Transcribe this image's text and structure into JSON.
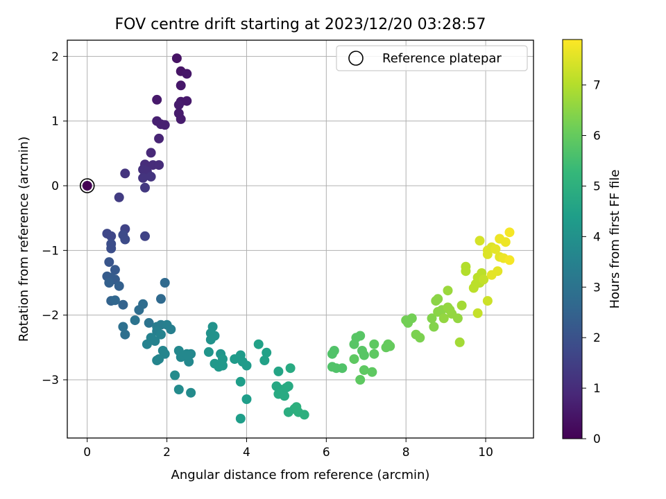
{
  "chart_data": {
    "type": "scatter",
    "title": "FOV centre drift starting at 2023/12/20 03:28:57",
    "xlabel": "Angular distance from reference (arcmin)",
    "ylabel": "Rotation from reference (arcmin)",
    "xlim": [
      -0.5,
      11.2
    ],
    "ylim": [
      -3.9,
      2.25
    ],
    "xticks": [
      0,
      2,
      4,
      6,
      8,
      10
    ],
    "yticks": [
      -3,
      -2,
      -1,
      0,
      1,
      2
    ],
    "xtick_labels": [
      "0",
      "2",
      "4",
      "6",
      "8",
      "10"
    ],
    "ytick_labels": [
      "−3",
      "−2",
      "−1",
      "0",
      "1",
      "2"
    ],
    "grid": true,
    "legend": {
      "position": "top-right",
      "entries": [
        "Reference platepar"
      ]
    },
    "reference_point": {
      "x": 0,
      "y": 0
    },
    "colorbar": {
      "label": "Hours from first FF file",
      "range": [
        0,
        7.9
      ],
      "ticks": [
        0,
        1,
        2,
        3,
        4,
        5,
        6,
        7
      ],
      "tick_labels": [
        "0",
        "1",
        "2",
        "3",
        "4",
        "5",
        "6",
        "7"
      ],
      "colormap": "viridis",
      "colors": [
        "#440154",
        "#482878",
        "#3e4989",
        "#31688e",
        "#26828e",
        "#1f9e89",
        "#35b779",
        "#6ece58",
        "#b5de2b",
        "#fde725"
      ]
    },
    "series": [
      {
        "points": [
          [
            0.0,
            0.0,
            0.0
          ],
          [
            2.25,
            1.97,
            0.4
          ],
          [
            2.35,
            1.77,
            0.45
          ],
          [
            2.5,
            1.73,
            0.5
          ],
          [
            2.35,
            1.55,
            0.5
          ],
          [
            1.75,
            1.33,
            0.55
          ],
          [
            2.35,
            1.3,
            0.55
          ],
          [
            2.5,
            1.31,
            0.55
          ],
          [
            2.3,
            1.25,
            0.6
          ],
          [
            2.3,
            1.12,
            0.6
          ],
          [
            2.35,
            1.03,
            0.6
          ],
          [
            1.75,
            1.0,
            0.7
          ],
          [
            1.85,
            0.95,
            0.7
          ],
          [
            1.95,
            0.94,
            0.7
          ],
          [
            1.8,
            0.73,
            0.8
          ],
          [
            1.6,
            0.51,
            0.9
          ],
          [
            1.45,
            0.33,
            1.0
          ],
          [
            1.65,
            0.32,
            1.0
          ],
          [
            1.8,
            0.32,
            1.0
          ],
          [
            1.4,
            0.25,
            1.1
          ],
          [
            1.5,
            0.22,
            1.1
          ],
          [
            0.95,
            0.19,
            1.2
          ],
          [
            1.4,
            0.12,
            1.2
          ],
          [
            1.6,
            0.14,
            1.2
          ],
          [
            1.45,
            -0.03,
            1.3
          ],
          [
            0.8,
            -0.18,
            1.4
          ],
          [
            0.95,
            -0.67,
            1.6
          ],
          [
            1.45,
            -0.78,
            1.6
          ],
          [
            0.5,
            -0.74,
            1.7
          ],
          [
            0.6,
            -0.78,
            1.7
          ],
          [
            0.9,
            -0.76,
            1.8
          ],
          [
            0.95,
            -0.83,
            1.8
          ],
          [
            0.6,
            -0.9,
            1.9
          ],
          [
            0.6,
            -0.97,
            1.9
          ],
          [
            0.55,
            -1.18,
            2.1
          ],
          [
            0.7,
            -1.3,
            2.2
          ],
          [
            0.5,
            -1.4,
            2.3
          ],
          [
            0.6,
            -1.42,
            2.3
          ],
          [
            0.7,
            -1.45,
            2.3
          ],
          [
            0.55,
            -1.5,
            2.4
          ],
          [
            0.8,
            -1.55,
            2.4
          ],
          [
            0.9,
            -1.84,
            2.5
          ],
          [
            0.6,
            -1.78,
            2.5
          ],
          [
            0.7,
            -1.77,
            2.6
          ],
          [
            1.95,
            -1.5,
            2.7
          ],
          [
            1.85,
            -1.75,
            2.7
          ],
          [
            1.4,
            -1.83,
            2.8
          ],
          [
            1.3,
            -1.92,
            2.8
          ],
          [
            0.9,
            -2.18,
            2.9
          ],
          [
            0.95,
            -2.3,
            2.9
          ],
          [
            1.55,
            -2.12,
            3.0
          ],
          [
            1.2,
            -2.08,
            3.0
          ],
          [
            1.75,
            -2.18,
            3.3
          ],
          [
            1.85,
            -2.15,
            3.3
          ],
          [
            2.0,
            -2.15,
            3.4
          ],
          [
            2.1,
            -2.22,
            3.4
          ],
          [
            1.75,
            -2.25,
            3.4
          ],
          [
            1.6,
            -2.35,
            3.5
          ],
          [
            1.85,
            -2.3,
            3.5
          ],
          [
            1.5,
            -2.45,
            3.5
          ],
          [
            1.7,
            -2.4,
            3.5
          ],
          [
            1.9,
            -2.55,
            3.6
          ],
          [
            1.95,
            -2.6,
            3.6
          ],
          [
            1.75,
            -2.7,
            3.6
          ],
          [
            1.8,
            -2.68,
            3.6
          ],
          [
            2.3,
            -2.55,
            3.7
          ],
          [
            2.35,
            -2.65,
            3.7
          ],
          [
            2.5,
            -2.6,
            3.7
          ],
          [
            2.55,
            -2.72,
            3.7
          ],
          [
            2.6,
            -2.6,
            3.7
          ],
          [
            2.2,
            -2.93,
            3.8
          ],
          [
            2.3,
            -3.15,
            3.8
          ],
          [
            2.6,
            -3.2,
            3.8
          ],
          [
            3.15,
            -2.18,
            4.0
          ],
          [
            3.1,
            -2.28,
            4.0
          ],
          [
            3.2,
            -2.32,
            4.0
          ],
          [
            3.1,
            -2.38,
            4.0
          ],
          [
            3.05,
            -2.57,
            4.1
          ],
          [
            3.35,
            -2.6,
            4.1
          ],
          [
            3.2,
            -2.75,
            4.2
          ],
          [
            3.3,
            -2.8,
            4.2
          ],
          [
            3.4,
            -2.68,
            4.2
          ],
          [
            3.4,
            -2.78,
            4.2
          ],
          [
            3.7,
            -2.68,
            4.3
          ],
          [
            3.85,
            -2.62,
            4.3
          ],
          [
            3.9,
            -2.72,
            4.3
          ],
          [
            4.0,
            -2.78,
            4.3
          ],
          [
            3.85,
            -3.03,
            4.4
          ],
          [
            4.0,
            -3.3,
            4.4
          ],
          [
            3.85,
            -3.6,
            4.4
          ],
          [
            4.3,
            -2.45,
            4.5
          ],
          [
            4.5,
            -2.58,
            4.5
          ],
          [
            4.45,
            -2.7,
            4.5
          ],
          [
            4.8,
            -2.87,
            4.6
          ],
          [
            4.75,
            -3.1,
            4.7
          ],
          [
            4.85,
            -3.15,
            4.7
          ],
          [
            4.9,
            -3.2,
            4.8
          ],
          [
            5.0,
            -3.12,
            4.8
          ],
          [
            5.05,
            -3.1,
            4.8
          ],
          [
            4.8,
            -3.22,
            4.8
          ],
          [
            4.95,
            -3.25,
            4.8
          ],
          [
            5.1,
            -2.82,
            4.8
          ],
          [
            5.05,
            -3.5,
            4.9
          ],
          [
            5.2,
            -3.45,
            4.9
          ],
          [
            5.25,
            -3.42,
            5.0
          ],
          [
            5.3,
            -3.5,
            5.0
          ],
          [
            5.45,
            -3.54,
            5.0
          ],
          [
            6.2,
            -2.55,
            5.7
          ],
          [
            6.15,
            -2.6,
            5.7
          ],
          [
            6.15,
            -2.8,
            5.7
          ],
          [
            6.25,
            -2.82,
            5.7
          ],
          [
            6.4,
            -2.82,
            5.7
          ],
          [
            6.75,
            -2.35,
            5.8
          ],
          [
            6.85,
            -2.32,
            5.8
          ],
          [
            6.7,
            -2.45,
            5.8
          ],
          [
            6.9,
            -2.55,
            5.8
          ],
          [
            6.95,
            -2.62,
            5.8
          ],
          [
            6.7,
            -2.68,
            5.9
          ],
          [
            7.2,
            -2.45,
            5.9
          ],
          [
            7.2,
            -2.6,
            5.9
          ],
          [
            6.95,
            -2.85,
            5.9
          ],
          [
            7.15,
            -2.88,
            5.9
          ],
          [
            6.85,
            -3.0,
            5.9
          ],
          [
            7.55,
            -2.45,
            6.0
          ],
          [
            7.5,
            -2.5,
            6.0
          ],
          [
            7.6,
            -2.48,
            6.0
          ],
          [
            8.0,
            -2.08,
            6.2
          ],
          [
            8.05,
            -2.12,
            6.2
          ],
          [
            8.15,
            -2.05,
            6.2
          ],
          [
            8.25,
            -2.3,
            6.3
          ],
          [
            8.35,
            -2.35,
            6.3
          ],
          [
            8.65,
            -2.05,
            6.4
          ],
          [
            8.7,
            -2.18,
            6.4
          ],
          [
            8.75,
            -1.78,
            6.5
          ],
          [
            8.8,
            -1.75,
            6.5
          ],
          [
            8.9,
            -1.92,
            6.5
          ],
          [
            8.8,
            -1.95,
            6.5
          ],
          [
            8.95,
            -2.05,
            6.6
          ],
          [
            9.05,
            -1.88,
            6.6
          ],
          [
            9.1,
            -1.92,
            6.6
          ],
          [
            9.15,
            -1.98,
            6.6
          ],
          [
            9.3,
            -2.05,
            6.6
          ],
          [
            9.05,
            -1.62,
            6.7
          ],
          [
            9.4,
            -1.85,
            6.8
          ],
          [
            9.35,
            -2.42,
            6.8
          ],
          [
            9.5,
            -1.25,
            7.0
          ],
          [
            9.5,
            -1.32,
            7.0
          ],
          [
            9.7,
            -1.58,
            7.1
          ],
          [
            9.75,
            -1.52,
            7.1
          ],
          [
            9.8,
            -1.42,
            7.1
          ],
          [
            9.85,
            -1.5,
            7.1
          ],
          [
            9.9,
            -1.35,
            7.1
          ],
          [
            9.95,
            -1.45,
            7.2
          ],
          [
            9.8,
            -1.97,
            7.2
          ],
          [
            10.05,
            -1.78,
            7.3
          ],
          [
            9.85,
            -0.85,
            7.4
          ],
          [
            10.05,
            -1.0,
            7.5
          ],
          [
            10.05,
            -1.06,
            7.5
          ],
          [
            10.15,
            -0.95,
            7.5
          ],
          [
            10.25,
            -0.98,
            7.6
          ],
          [
            10.15,
            -1.38,
            7.6
          ],
          [
            10.3,
            -1.32,
            7.6
          ],
          [
            10.35,
            -1.1,
            7.6
          ],
          [
            10.45,
            -1.12,
            7.7
          ],
          [
            10.35,
            -0.82,
            7.7
          ],
          [
            10.5,
            -0.87,
            7.7
          ],
          [
            10.6,
            -0.72,
            7.8
          ],
          [
            10.6,
            -1.15,
            7.8
          ]
        ]
      }
    ]
  }
}
